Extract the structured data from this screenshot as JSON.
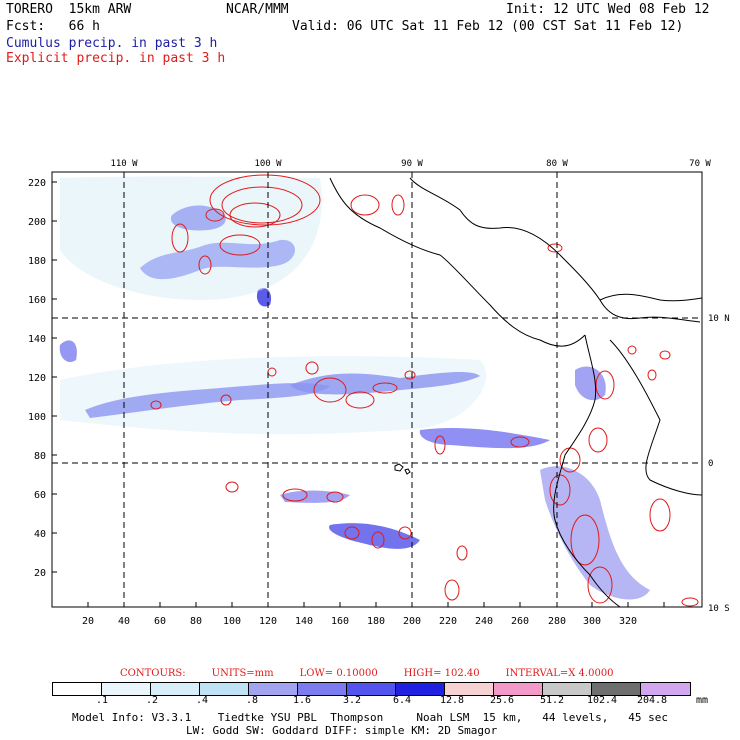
{
  "header": {
    "model": "TORERO  15km ARW",
    "center": "NCAR/MMM",
    "init": "Init: 12 UTC Wed 08 Feb 12",
    "fcst": "Fcst:   66 h",
    "valid": "Valid: 06 UTC Sat 11 Feb 12 (00 CST Sat 11 Feb 12)",
    "cumulus": "Cumulus precip. in past 3 h",
    "explicit": "Explicit precip. in past 3 h"
  },
  "axes": {
    "top_lon_labels": [
      "110 W",
      "100 W",
      "90 W",
      "80 W",
      "70 W"
    ],
    "right_lat_labels": [
      "10 N",
      "0",
      "10 S"
    ],
    "x_ticks": [
      "20",
      "40",
      "60",
      "80",
      "100",
      "120",
      "140",
      "160",
      "180",
      "200",
      "220",
      "240",
      "260",
      "280",
      "300",
      "320"
    ],
    "y_ticks": [
      "20",
      "40",
      "60",
      "80",
      "100",
      "120",
      "140",
      "160",
      "180",
      "200",
      "220"
    ]
  },
  "contours": {
    "label": "CONTOURS:",
    "units": "UNITS=mm",
    "low": "LOW= 0.10000",
    "high": "HIGH= 102.40",
    "interval": "INTERVAL=X 4.0000"
  },
  "legend": {
    "colors": [
      "#ffffff",
      "#eaf6fb",
      "#d8eef8",
      "#bfe3f4",
      "#a2a4f0",
      "#7c7cf0",
      "#5353ee",
      "#2020e0",
      "#f6d2d2",
      "#f49ac8",
      "#c8c8c8",
      "#6e6e6e",
      "#d3a6f0"
    ],
    "ticks": [
      ".1",
      ".2",
      ".4",
      ".8",
      "1.6",
      "3.2",
      "6.4",
      "12.8",
      "25.6",
      "51.2",
      "102.4",
      "204.8"
    ],
    "units": "mm"
  },
  "model_info": {
    "line1": "Model Info: V3.3.1    Tiedtke YSU PBL  Thompson     Noah LSM  15 km,   44 levels,   45 sec",
    "line2": "LW: Godd SW: Goddard DIFF: simple KM: 2D Smagor"
  }
}
